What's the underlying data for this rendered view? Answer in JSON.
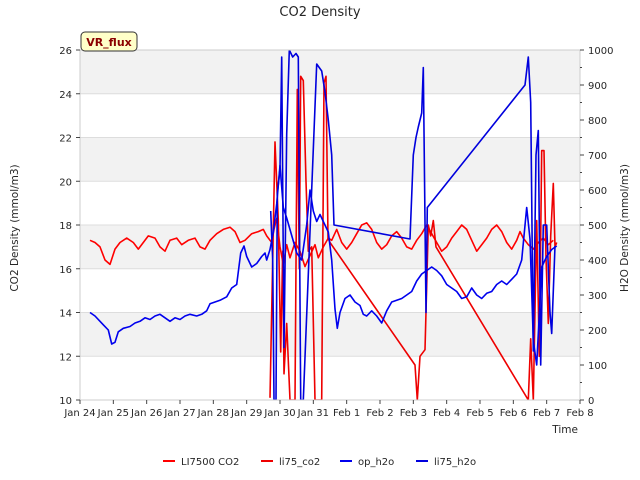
{
  "chart_data": {
    "type": "line",
    "title": "CO2 Density",
    "badge": "VR_flux",
    "xlabel": "Time",
    "ylabel_left": "CO2 Density (mmol/m3)",
    "ylabel_right": "H2O Density (mmol/m3)",
    "x_domain": [
      0,
      15
    ],
    "x_ticks": [
      {
        "v": 0,
        "label": "Jan 24"
      },
      {
        "v": 1,
        "label": "Jan 25"
      },
      {
        "v": 2,
        "label": "Jan 26"
      },
      {
        "v": 3,
        "label": "Jan 27"
      },
      {
        "v": 4,
        "label": "Jan 28"
      },
      {
        "v": 5,
        "label": "Jan 29"
      },
      {
        "v": 6,
        "label": "Jan 30"
      },
      {
        "v": 7,
        "label": "Jan 31"
      },
      {
        "v": 8,
        "label": "Feb 1"
      },
      {
        "v": 9,
        "label": "Feb 2"
      },
      {
        "v": 10,
        "label": "Feb 3"
      },
      {
        "v": 11,
        "label": "Feb 4"
      },
      {
        "v": 12,
        "label": "Feb 5"
      },
      {
        "v": 13,
        "label": "Feb 6"
      },
      {
        "v": 14,
        "label": "Feb 7"
      },
      {
        "v": 15,
        "label": "Feb 8"
      }
    ],
    "ylim_left": [
      10,
      26
    ],
    "yticks_left": [
      10,
      12,
      14,
      16,
      18,
      20,
      22,
      24,
      26
    ],
    "ylim_right": [
      0,
      1000
    ],
    "yticks_right": [
      0,
      100,
      200,
      300,
      400,
      500,
      600,
      700,
      800,
      900,
      1000
    ],
    "grid": true,
    "legend_position": "bottom",
    "series": [
      {
        "name": "LI7500 CO2",
        "axis": "left",
        "color": "#ff0000",
        "points": [
          [
            0.3,
            17.3
          ],
          [
            0.45,
            17.2
          ],
          [
            0.6,
            17.0
          ],
          [
            0.75,
            16.4
          ],
          [
            0.9,
            16.2
          ],
          [
            1.05,
            16.9
          ],
          [
            1.2,
            17.2
          ],
          [
            1.4,
            17.4
          ],
          [
            1.6,
            17.2
          ],
          [
            1.75,
            16.9
          ],
          [
            1.9,
            17.2
          ],
          [
            2.05,
            17.5
          ],
          [
            2.25,
            17.4
          ],
          [
            2.4,
            17.0
          ],
          [
            2.55,
            16.8
          ],
          [
            2.7,
            17.3
          ],
          [
            2.9,
            17.4
          ],
          [
            3.05,
            17.1
          ],
          [
            3.25,
            17.3
          ],
          [
            3.45,
            17.4
          ],
          [
            3.6,
            17.0
          ],
          [
            3.75,
            16.9
          ],
          [
            3.9,
            17.3
          ],
          [
            4.1,
            17.6
          ],
          [
            4.3,
            17.8
          ],
          [
            4.5,
            17.9
          ],
          [
            4.65,
            17.7
          ],
          [
            4.8,
            17.2
          ],
          [
            4.95,
            17.3
          ],
          [
            5.15,
            17.6
          ],
          [
            5.35,
            17.7
          ],
          [
            5.5,
            17.8
          ],
          [
            5.6,
            17.5
          ],
          [
            5.75,
            17.2
          ],
          [
            5.82,
            17.8
          ],
          [
            5.9,
            18.3
          ],
          [
            6.0,
            17.0
          ],
          [
            6.1,
            16.2
          ],
          [
            6.2,
            17.1
          ],
          [
            6.3,
            16.5
          ],
          [
            6.45,
            17.2
          ],
          [
            6.6,
            16.8
          ],
          [
            6.75,
            16.1
          ],
          [
            6.9,
            16.6
          ],
          [
            7.05,
            17.1
          ],
          [
            7.15,
            16.5
          ],
          [
            7.3,
            17.0
          ],
          [
            7.45,
            17.4
          ],
          [
            7.55,
            17.3
          ],
          [
            7.7,
            17.8
          ],
          [
            7.85,
            17.2
          ],
          [
            8.0,
            16.9
          ],
          [
            8.15,
            17.2
          ],
          [
            8.3,
            17.6
          ],
          [
            8.45,
            18.0
          ],
          [
            8.6,
            18.1
          ],
          [
            8.75,
            17.8
          ],
          [
            8.9,
            17.2
          ],
          [
            9.05,
            16.9
          ],
          [
            9.2,
            17.1
          ],
          [
            9.35,
            17.5
          ],
          [
            9.5,
            17.7
          ],
          [
            9.65,
            17.4
          ],
          [
            9.8,
            17.0
          ],
          [
            9.95,
            16.9
          ],
          [
            10.1,
            17.3
          ],
          [
            10.25,
            17.6
          ],
          [
            10.4,
            18.0
          ],
          [
            10.55,
            17.6
          ],
          [
            10.7,
            17.2
          ],
          [
            10.85,
            16.8
          ],
          [
            11.0,
            17.0
          ],
          [
            11.15,
            17.4
          ],
          [
            11.3,
            17.7
          ],
          [
            11.45,
            18.0
          ],
          [
            11.6,
            17.8
          ],
          [
            11.75,
            17.3
          ],
          [
            11.9,
            16.8
          ],
          [
            12.05,
            17.1
          ],
          [
            12.2,
            17.4
          ],
          [
            12.35,
            17.8
          ],
          [
            12.5,
            18.0
          ],
          [
            12.65,
            17.7
          ],
          [
            12.8,
            17.2
          ],
          [
            12.95,
            16.9
          ],
          [
            13.1,
            17.3
          ],
          [
            13.2,
            17.7
          ],
          [
            13.3,
            17.4
          ],
          [
            13.45,
            17.1
          ],
          [
            13.6,
            16.9
          ],
          [
            13.75,
            17.2
          ],
          [
            13.9,
            17.4
          ],
          [
            14.05,
            17.1
          ],
          [
            14.2,
            17.3
          ]
        ]
      },
      {
        "name": "li75_co2",
        "axis": "left",
        "color": "#ee0000",
        "points": [
          [
            5.7,
            10.1
          ],
          [
            5.85,
            21.8
          ],
          [
            5.95,
            18.2
          ],
          [
            6.02,
            12.2
          ],
          [
            6.08,
            16.8
          ],
          [
            6.12,
            11.2
          ],
          [
            6.2,
            13.5
          ],
          [
            6.3,
            10.0
          ],
          [
            6.45,
            10.0
          ],
          [
            6.52,
            24.2
          ],
          [
            6.58,
            16.0
          ],
          [
            6.62,
            24.8
          ],
          [
            6.7,
            24.6
          ],
          [
            6.78,
            20.0
          ],
          [
            6.85,
            16.8
          ],
          [
            6.95,
            17.0
          ],
          [
            7.05,
            10.0
          ],
          [
            7.25,
            10.0
          ],
          [
            7.32,
            24.5
          ],
          [
            7.38,
            24.8
          ],
          [
            7.44,
            17.4
          ],
          [
            7.5,
            17.2
          ],
          [
            10.05,
            11.6
          ],
          [
            10.12,
            10.0
          ],
          [
            10.2,
            12.0
          ],
          [
            10.35,
            12.3
          ],
          [
            10.45,
            18.0
          ],
          [
            10.52,
            17.5
          ],
          [
            10.6,
            18.2
          ],
          [
            10.68,
            17.0
          ],
          [
            13.45,
            10.0
          ],
          [
            13.52,
            12.8
          ],
          [
            13.6,
            10.0
          ],
          [
            13.7,
            18.2
          ],
          [
            13.78,
            12.0
          ],
          [
            13.85,
            21.4
          ],
          [
            13.92,
            21.4
          ],
          [
            13.98,
            16.5
          ],
          [
            14.05,
            13.5
          ],
          [
            14.12,
            17.5
          ],
          [
            14.2,
            19.9
          ],
          [
            14.25,
            17.0
          ],
          [
            14.3,
            17.2
          ]
        ]
      },
      {
        "name": "op_h2o",
        "axis": "right",
        "color": "#0000ee",
        "points": [
          [
            0.3,
            250
          ],
          [
            0.45,
            240
          ],
          [
            0.6,
            225
          ],
          [
            0.7,
            215
          ],
          [
            0.85,
            200
          ],
          [
            0.95,
            160
          ],
          [
            1.05,
            165
          ],
          [
            1.15,
            195
          ],
          [
            1.3,
            205
          ],
          [
            1.5,
            210
          ],
          [
            1.65,
            220
          ],
          [
            1.8,
            225
          ],
          [
            1.95,
            235
          ],
          [
            2.1,
            230
          ],
          [
            2.25,
            240
          ],
          [
            2.4,
            245
          ],
          [
            2.55,
            235
          ],
          [
            2.7,
            225
          ],
          [
            2.85,
            235
          ],
          [
            3.0,
            230
          ],
          [
            3.15,
            240
          ],
          [
            3.3,
            245
          ],
          [
            3.5,
            240
          ],
          [
            3.65,
            245
          ],
          [
            3.8,
            255
          ],
          [
            3.9,
            275
          ],
          [
            4.05,
            280
          ],
          [
            4.2,
            285
          ],
          [
            4.4,
            295
          ],
          [
            4.55,
            320
          ],
          [
            4.7,
            330
          ],
          [
            4.82,
            420
          ],
          [
            4.92,
            440
          ],
          [
            5.0,
            410
          ],
          [
            5.15,
            380
          ],
          [
            5.3,
            390
          ],
          [
            5.45,
            410
          ],
          [
            5.55,
            420
          ],
          [
            5.6,
            400
          ],
          [
            5.7,
            430
          ],
          [
            5.8,
            480
          ],
          [
            5.9,
            560
          ],
          [
            6.0,
            670
          ],
          [
            6.1,
            550
          ],
          [
            6.2,
            520
          ],
          [
            6.35,
            470
          ],
          [
            6.5,
            420
          ],
          [
            6.65,
            400
          ],
          [
            6.8,
            500
          ],
          [
            6.9,
            600
          ],
          [
            7.0,
            540
          ],
          [
            7.1,
            510
          ],
          [
            7.2,
            530
          ],
          [
            7.3,
            510
          ],
          [
            7.45,
            480
          ],
          [
            7.55,
            400
          ],
          [
            7.65,
            260
          ],
          [
            7.72,
            205
          ],
          [
            7.8,
            250
          ],
          [
            7.95,
            290
          ],
          [
            8.1,
            300
          ],
          [
            8.25,
            280
          ],
          [
            8.4,
            270
          ],
          [
            8.5,
            245
          ],
          [
            8.6,
            240
          ],
          [
            8.75,
            255
          ],
          [
            8.9,
            240
          ],
          [
            9.05,
            220
          ],
          [
            9.2,
            255
          ],
          [
            9.35,
            280
          ],
          [
            9.5,
            285
          ],
          [
            9.65,
            290
          ],
          [
            9.8,
            300
          ],
          [
            9.95,
            310
          ],
          [
            10.1,
            340
          ],
          [
            10.25,
            360
          ],
          [
            10.4,
            370
          ],
          [
            10.55,
            380
          ],
          [
            10.7,
            370
          ],
          [
            10.85,
            355
          ],
          [
            11.0,
            330
          ],
          [
            11.15,
            320
          ],
          [
            11.3,
            310
          ],
          [
            11.45,
            290
          ],
          [
            11.6,
            295
          ],
          [
            11.75,
            320
          ],
          [
            11.9,
            300
          ],
          [
            12.05,
            290
          ],
          [
            12.2,
            305
          ],
          [
            12.35,
            310
          ],
          [
            12.5,
            330
          ],
          [
            12.65,
            340
          ],
          [
            12.8,
            330
          ],
          [
            12.95,
            345
          ],
          [
            13.1,
            360
          ],
          [
            13.25,
            400
          ],
          [
            13.4,
            550
          ],
          [
            13.5,
            460
          ],
          [
            13.6,
            170
          ],
          [
            13.7,
            100
          ],
          [
            13.85,
            380
          ],
          [
            14.0,
            410
          ],
          [
            14.15,
            430
          ],
          [
            14.3,
            440
          ]
        ]
      },
      {
        "name": "li75_h2o",
        "axis": "right",
        "color": "#0000dd",
        "points": [
          [
            5.72,
            540
          ],
          [
            5.78,
            400
          ],
          [
            5.82,
            0
          ],
          [
            5.88,
            0
          ],
          [
            5.92,
            590
          ],
          [
            6.0,
            660
          ],
          [
            6.05,
            980
          ],
          [
            6.12,
            150
          ],
          [
            6.2,
            760
          ],
          [
            6.28,
            1000
          ],
          [
            6.38,
            980
          ],
          [
            6.48,
            990
          ],
          [
            6.55,
            980
          ],
          [
            6.62,
            0
          ],
          [
            6.7,
            0
          ],
          [
            7.1,
            960
          ],
          [
            7.25,
            940
          ],
          [
            7.35,
            880
          ],
          [
            7.45,
            800
          ],
          [
            7.55,
            700
          ],
          [
            7.62,
            500
          ],
          [
            9.9,
            460
          ],
          [
            10.0,
            700
          ],
          [
            10.08,
            750
          ],
          [
            10.15,
            780
          ],
          [
            10.25,
            820
          ],
          [
            10.3,
            950
          ],
          [
            10.38,
            250
          ],
          [
            10.42,
            550
          ],
          [
            13.35,
            900
          ],
          [
            13.45,
            980
          ],
          [
            13.52,
            850
          ],
          [
            13.6,
            140
          ],
          [
            13.68,
            700
          ],
          [
            13.75,
            770
          ],
          [
            13.82,
            100
          ],
          [
            13.9,
            500
          ],
          [
            14.0,
            500
          ],
          [
            14.1,
            250
          ],
          [
            14.15,
            190
          ],
          [
            14.25,
            440
          ]
        ]
      }
    ]
  }
}
